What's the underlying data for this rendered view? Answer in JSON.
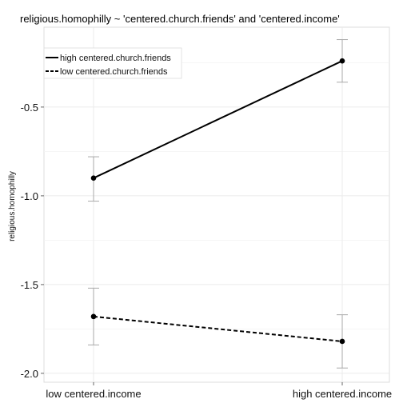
{
  "chart_data": {
    "type": "line",
    "title": "religious.homophilly ~ 'centered.church.friends' and 'centered.income'",
    "xlabel": "",
    "ylabel": "religious.homophilly",
    "categories": [
      "low centered.income",
      "high centered.income"
    ],
    "ylim": [
      -2.05,
      -0.05
    ],
    "yticks": [
      -0.5,
      -1.0,
      -1.5,
      -2.0
    ],
    "ytick_labels": [
      "-0.5",
      "-1.0",
      "-1.5",
      "-2.0"
    ],
    "grid": true,
    "legend_position": "top-left",
    "series": [
      {
        "name": "high centered.church.friends",
        "line_style": "solid",
        "values": [
          -0.9,
          -0.24
        ],
        "error_low": [
          -1.03,
          -0.36
        ],
        "error_high": [
          -0.78,
          -0.12
        ]
      },
      {
        "name": "low centered.church.friends",
        "line_style": "dashed",
        "values": [
          -1.68,
          -1.82
        ],
        "error_low": [
          -1.84,
          -1.97
        ],
        "error_high": [
          -1.52,
          -1.67
        ]
      }
    ]
  },
  "colors": {
    "line": "#000000",
    "errorbar": "#a9a9a9",
    "grid": "#ebebeb",
    "panel_border": "#dcdcdc"
  }
}
